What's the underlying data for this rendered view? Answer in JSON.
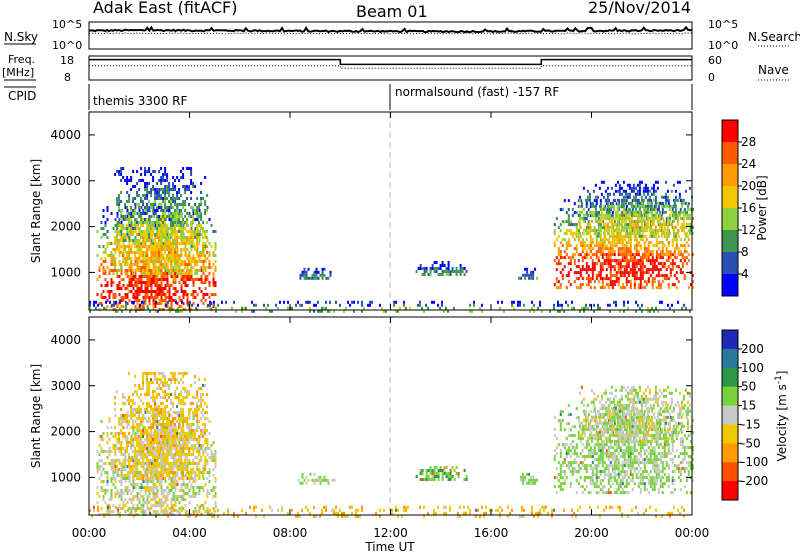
{
  "header": {
    "station": "Adak East (fitACF)",
    "beam": "Beam 01",
    "date": "25/Nov/2014"
  },
  "noise_panel": {
    "left_label": "N.Sky",
    "right_label": "N.Search",
    "left_ticks": [
      "10^5",
      "10^0"
    ],
    "right_ticks": [
      "10^5",
      "10^0"
    ]
  },
  "freq_panel": {
    "left_label_1": "Freq.",
    "left_label_2": "[MHz]",
    "left_ticks": [
      "18",
      "8"
    ],
    "right_label": "Nave",
    "right_ticks": [
      "60",
      "0"
    ]
  },
  "cpid_panel": {
    "label": "CPID",
    "segments": [
      {
        "start_h": 0,
        "text": "themis 3300 RF"
      },
      {
        "start_h": 12,
        "text": "normalsound (fast) -157 RF"
      }
    ]
  },
  "power_colorbar": {
    "label": "Power [dB]",
    "ticks": [
      "28",
      "24",
      "20",
      "16",
      "12",
      "8",
      "4"
    ],
    "colors": [
      "#ff0000",
      "#ff5a00",
      "#ff9b00",
      "#f0c800",
      "#8cd23c",
      "#3c9650",
      "#2850b4",
      "#0000ff"
    ]
  },
  "velocity_colorbar": {
    "label": "Velocity [m s",
    "label_sup": "-1",
    "label_end": "]",
    "ticks": [
      "200",
      "100",
      "50",
      "15",
      "-15",
      "-50",
      "-100",
      "-200"
    ],
    "colors": [
      "#1e2ab4",
      "#2a78a0",
      "#2e9646",
      "#78d23c",
      "#c8c8c8",
      "#f0c800",
      "#ff9b00",
      "#ff5000",
      "#ff0000"
    ]
  },
  "xaxis": {
    "label": "Time UT",
    "ticks": [
      "00:00",
      "04:00",
      "08:00",
      "12:00",
      "16:00",
      "20:00",
      "00:00"
    ]
  },
  "chart_data": [
    {
      "type": "line",
      "title": "N.Sky",
      "x_range_h": [
        0,
        24
      ],
      "y_scale": "log",
      "ylim": [
        1,
        100000
      ],
      "series": [
        {
          "name": "N.Sky",
          "x": [
            0,
            2,
            4,
            6,
            8,
            10,
            12,
            14,
            16,
            18,
            20,
            22,
            24
          ],
          "y": [
            2500,
            3000,
            2800,
            2600,
            2200,
            2000,
            1900,
            1800,
            1800,
            2000,
            2300,
            2600,
            2800
          ]
        }
      ]
    },
    {
      "type": "line",
      "title": "Freq. [MHz]",
      "x_range_h": [
        0,
        24
      ],
      "ylim": [
        8,
        18
      ],
      "series": [
        {
          "name": "Freq. [MHz]",
          "x": [
            0,
            10,
            10,
            18,
            18,
            24
          ],
          "y": [
            16.5,
            16.5,
            14.5,
            14.5,
            16.5,
            16.5
          ]
        },
        {
          "name": "Nave",
          "x": [
            0,
            10,
            10,
            18,
            18,
            24
          ],
          "y": [
            16,
            16,
            15,
            15,
            16,
            16
          ]
        }
      ]
    },
    {
      "type": "heatmap",
      "title": "Power [dB]",
      "xlabel": "Time UT",
      "ylabel": "Slant Range [km]",
      "x_range_h": [
        0,
        24
      ],
      "ylim": [
        180,
        4500
      ],
      "yticks": [
        1000,
        2000,
        3000,
        4000
      ],
      "value_range": [
        0,
        30
      ],
      "blobs": [
        {
          "t0": 0.3,
          "t1": 5.0,
          "r0": 200,
          "r1": 2450,
          "peak_power": 29
        },
        {
          "t0": 1.0,
          "t1": 4.7,
          "r0": 1000,
          "r1": 3300,
          "peak_power": 20
        },
        {
          "t0": 8.3,
          "t1": 9.8,
          "r0": 900,
          "r1": 1100,
          "peak_power": 9
        },
        {
          "t0": 13.0,
          "t1": 15.0,
          "r0": 950,
          "r1": 1250,
          "peak_power": 10
        },
        {
          "t0": 17.0,
          "t1": 17.8,
          "r0": 850,
          "r1": 1100,
          "peak_power": 8
        },
        {
          "t0": 18.5,
          "t1": 24.0,
          "r0": 700,
          "r1": 2600,
          "peak_power": 30
        },
        {
          "t0": 19.5,
          "t1": 24.0,
          "r0": 1800,
          "r1": 3000,
          "peak_power": 18
        },
        {
          "t0": 0.0,
          "t1": 24.0,
          "r0": 180,
          "r1": 380,
          "peak_power": 14
        }
      ]
    },
    {
      "type": "heatmap",
      "title": "Velocity [m s-1]",
      "xlabel": "Time UT",
      "ylabel": "Slant Range [km]",
      "x_range_h": [
        0,
        24
      ],
      "ylim": [
        180,
        4500
      ],
      "yticks": [
        1000,
        2000,
        3000,
        4000
      ],
      "value_range": [
        -200,
        200
      ],
      "blobs": [
        {
          "t0": 0.3,
          "t1": 5.0,
          "r0": 200,
          "r1": 2450,
          "velocity": 0
        },
        {
          "t0": 1.0,
          "t1": 4.7,
          "r0": 1000,
          "r1": 3300,
          "velocity": -30
        },
        {
          "t0": 8.3,
          "t1": 9.8,
          "r0": 900,
          "r1": 1100,
          "velocity": 10
        },
        {
          "t0": 13.0,
          "t1": 15.0,
          "r0": 950,
          "r1": 1250,
          "velocity": 40
        },
        {
          "t0": 17.0,
          "t1": 17.8,
          "r0": 850,
          "r1": 1100,
          "velocity": 30
        },
        {
          "t0": 18.5,
          "t1": 24.0,
          "r0": 700,
          "r1": 2600,
          "velocity": 20
        },
        {
          "t0": 19.5,
          "t1": 24.0,
          "r0": 1800,
          "r1": 3000,
          "velocity": 5
        },
        {
          "t0": 0.0,
          "t1": 24.0,
          "r0": 180,
          "r1": 380,
          "velocity": -40
        }
      ]
    }
  ]
}
